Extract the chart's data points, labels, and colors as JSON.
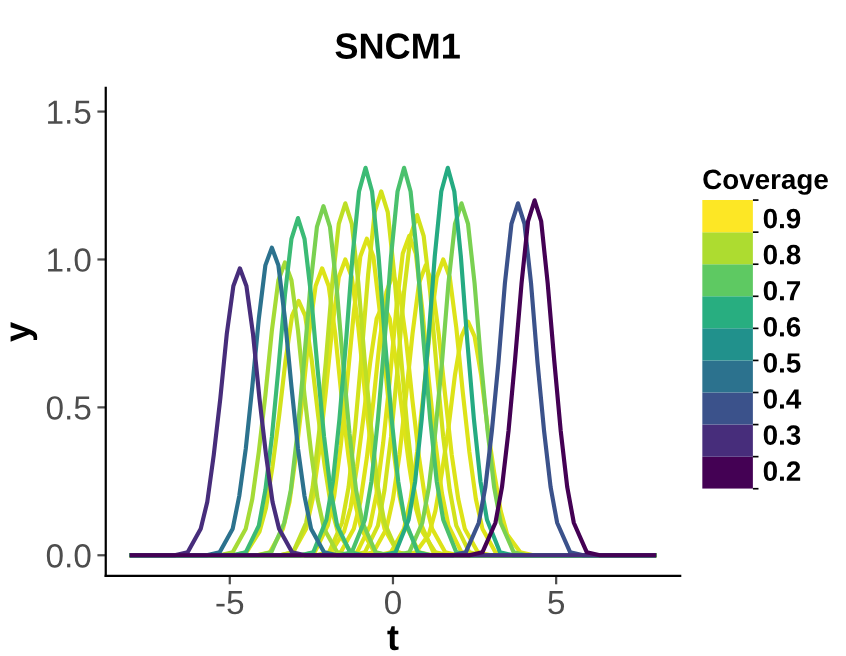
{
  "chart_data": {
    "type": "line",
    "title": "SNCM1",
    "xlabel": "t",
    "ylabel": "y",
    "clabel": "Coverage",
    "xlim": [
      -8.8,
      8.8
    ],
    "ylim": [
      -0.07,
      1.58
    ],
    "xticks": [
      -5,
      0,
      5
    ],
    "yticks": [
      {
        "value": 0,
        "label": "0.0"
      },
      {
        "value": 0.5,
        "label": "0.5"
      },
      {
        "value": 1,
        "label": "1.0"
      },
      {
        "value": 1.5,
        "label": "1.5"
      }
    ],
    "clim": [
      0.15,
      0.95
    ],
    "cticks": [
      0.2,
      0.3,
      0.4,
      0.5,
      0.6,
      0.7,
      0.8,
      0.9
    ],
    "grid": false,
    "legend": false,
    "marker": "none",
    "line_style": "solid",
    "series": [
      {
        "color": "#dde318",
        "x": [
          -8,
          -2.8,
          -2.4,
          -2.0,
          -1.8,
          -1.6,
          -1.4,
          -1.2,
          -1.0,
          -0.8,
          -0.6,
          -0.4,
          -0.2,
          0,
          0.2,
          0.4,
          0.8,
          1.2,
          8
        ],
        "values": [
          0,
          0,
          0.01,
          0.1,
          0.2,
          0.37,
          0.59,
          0.82,
          1.01,
          1.07,
          1.01,
          0.82,
          0.59,
          0.37,
          0.2,
          0.1,
          0.01,
          0,
          0
        ]
      },
      {
        "color": "#dde318",
        "x": [
          -8,
          -2,
          -1.6,
          -1.2,
          -1,
          -0.8,
          -0.6,
          -0.4,
          -0.2,
          0,
          0.2,
          0.4,
          0.6,
          0.8,
          1,
          1.2,
          1.6,
          2,
          8
        ],
        "values": [
          0,
          0,
          0.01,
          0.09,
          0.18,
          0.33,
          0.52,
          0.73,
          0.89,
          0.95,
          0.89,
          0.73,
          0.52,
          0.33,
          0.18,
          0.09,
          0.01,
          0,
          0
        ]
      },
      {
        "color": "#dde318",
        "x": [
          -8,
          -1.5,
          -1.1,
          -0.7,
          -0.5,
          -0.3,
          -0.1,
          0.1,
          0.3,
          0.5,
          0.7,
          0.9,
          1.1,
          1.3,
          1.5,
          1.7,
          2.1,
          2.5,
          8
        ],
        "values": [
          0,
          0,
          0.01,
          0.1,
          0.21,
          0.38,
          0.59,
          0.83,
          1.02,
          1.08,
          1.02,
          0.83,
          0.59,
          0.38,
          0.21,
          0.1,
          0.01,
          0,
          0
        ]
      },
      {
        "color": "#dde318",
        "x": [
          -8,
          -2.3,
          -1.9,
          -1.5,
          -1.3,
          -1.1,
          -0.9,
          -0.7,
          -0.5,
          -0.3,
          -0.1,
          0.1,
          0.3,
          0.5,
          0.7,
          0.9,
          1.3,
          1.7,
          8
        ],
        "values": [
          0,
          0,
          0.01,
          0.08,
          0.16,
          0.3,
          0.47,
          0.65,
          0.8,
          0.85,
          0.8,
          0.65,
          0.47,
          0.3,
          0.16,
          0.08,
          0.01,
          0,
          0
        ]
      },
      {
        "color": "#dde318",
        "x": [
          -8,
          -1,
          -0.6,
          -0.2,
          0,
          0.2,
          0.4,
          0.6,
          0.8,
          1,
          1.2,
          1.4,
          1.6,
          1.8,
          2,
          2.2,
          2.6,
          3,
          8
        ],
        "values": [
          0,
          0,
          0.01,
          0.09,
          0.19,
          0.34,
          0.54,
          0.75,
          0.92,
          0.98,
          0.92,
          0.75,
          0.54,
          0.34,
          0.19,
          0.09,
          0.01,
          0,
          0
        ]
      },
      {
        "color": "#dde318",
        "x": [
          -8,
          -4.17,
          -3.77,
          -3.37,
          -3.17,
          -2.97,
          -2.77,
          -2.57,
          -2.37,
          -2.17,
          -1.97,
          -1.77,
          -1.57,
          -1.37,
          -1.17,
          -0.97,
          -0.57,
          -0.17,
          8
        ],
        "values": [
          0,
          0,
          0.01,
          0.09,
          0.18,
          0.34,
          0.53,
          0.75,
          0.91,
          0.97,
          0.91,
          0.75,
          0.53,
          0.34,
          0.18,
          0.09,
          0.01,
          0,
          0
        ]
      },
      {
        "color": "#dde318",
        "x": [
          -8,
          -3.46,
          -3.06,
          -2.66,
          -2.46,
          -2.26,
          -2.06,
          -1.86,
          -1.66,
          -1.46,
          -1.26,
          -1.06,
          -0.86,
          -0.66,
          -0.46,
          -0.26,
          0.14,
          0.54,
          8
        ],
        "values": [
          0,
          0,
          0.01,
          0.09,
          0.19,
          0.35,
          0.55,
          0.77,
          0.94,
          1.0,
          0.94,
          0.77,
          0.55,
          0.35,
          0.19,
          0.09,
          0.01,
          0,
          0
        ]
      },
      {
        "color": "#dde318",
        "x": [
          -8,
          -0.46,
          -0.06,
          0.34,
          0.54,
          0.74,
          0.94,
          1.14,
          1.34,
          1.54,
          1.74,
          1.94,
          2.14,
          2.34,
          2.54,
          2.74,
          3.14,
          3.54,
          8
        ],
        "values": [
          0,
          0,
          0.01,
          0.09,
          0.19,
          0.35,
          0.55,
          0.77,
          0.94,
          1.0,
          0.94,
          0.77,
          0.55,
          0.35,
          0.19,
          0.09,
          0.01,
          0,
          0
        ]
      },
      {
        "color": "#dde318",
        "x": [
          -8,
          0.3,
          0.7,
          1.1,
          1.3,
          1.5,
          1.7,
          1.9,
          2.1,
          2.3,
          2.5,
          2.7,
          2.9,
          3.1,
          3.3,
          3.5,
          3.9,
          4.3,
          8
        ],
        "values": [
          0,
          0,
          0.01,
          0.07,
          0.15,
          0.28,
          0.43,
          0.61,
          0.74,
          0.79,
          0.74,
          0.61,
          0.43,
          0.28,
          0.15,
          0.07,
          0.01,
          0,
          0
        ]
      },
      {
        "color": "#d2e21b",
        "x": [
          -8,
          -4.89,
          -4.49,
          -4.09,
          -3.89,
          -3.69,
          -3.49,
          -3.29,
          -3.09,
          -2.89,
          -2.69,
          -2.49,
          -2.29,
          -2.09,
          -1.89,
          -1.69,
          -1.29,
          -0.89,
          8
        ],
        "values": [
          0,
          0,
          0.01,
          0.08,
          0.16,
          0.3,
          0.47,
          0.66,
          0.81,
          0.86,
          0.81,
          0.66,
          0.47,
          0.3,
          0.16,
          0.08,
          0.01,
          0,
          0
        ]
      },
      {
        "color": "#d2e21b",
        "x": [
          -8,
          -2.36,
          -1.96,
          -1.56,
          -1.36,
          -1.16,
          -0.96,
          -0.76,
          -0.56,
          -0.36,
          -0.16,
          0.04,
          0.24,
          0.44,
          0.64,
          0.84,
          1.24,
          1.64,
          8
        ],
        "values": [
          0,
          0,
          0.01,
          0.11,
          0.23,
          0.43,
          0.68,
          0.95,
          1.16,
          1.23,
          1.16,
          0.95,
          0.68,
          0.43,
          0.23,
          0.11,
          0.01,
          0,
          0
        ]
      },
      {
        "color": "#d2e21b",
        "x": [
          -8,
          -1.26,
          -0.86,
          -0.46,
          -0.26,
          -0.06,
          0.14,
          0.34,
          0.54,
          0.74,
          0.94,
          1.14,
          1.34,
          1.54,
          1.74,
          1.94,
          2.34,
          2.74,
          8
        ],
        "values": [
          0,
          0,
          0.01,
          0.1,
          0.22,
          0.4,
          0.63,
          0.89,
          1.08,
          1.15,
          1.08,
          0.89,
          0.63,
          0.4,
          0.22,
          0.1,
          0.01,
          0,
          0
        ]
      },
      {
        "color": "#bddf26",
        "x": [
          -8,
          -3.46,
          -3.06,
          -2.66,
          -2.46,
          -2.26,
          -2.06,
          -1.86,
          -1.66,
          -1.46,
          -1.26,
          -1.06,
          -0.86,
          -0.66,
          -0.46,
          -0.26,
          0.14,
          0.54,
          8
        ],
        "values": [
          0,
          0,
          0.01,
          0.11,
          0.23,
          0.42,
          0.65,
          0.92,
          1.12,
          1.19,
          1.12,
          0.92,
          0.65,
          0.42,
          0.23,
          0.11,
          0.01,
          0,
          0
        ]
      },
      {
        "color": "#a5db36",
        "x": [
          -8,
          -5.31,
          -4.91,
          -4.51,
          -4.31,
          -4.11,
          -3.91,
          -3.71,
          -3.51,
          -3.31,
          -3.11,
          -2.91,
          -2.71,
          -2.51,
          -2.31,
          -2.11,
          -1.71,
          -1.31,
          8
        ],
        "values": [
          0,
          0,
          0.01,
          0.09,
          0.19,
          0.35,
          0.54,
          0.76,
          0.93,
          0.99,
          0.93,
          0.76,
          0.54,
          0.35,
          0.19,
          0.09,
          0.01,
          0,
          0
        ]
      },
      {
        "color": "#7ad151",
        "x": [
          -8,
          -4.13,
          -3.73,
          -3.33,
          -3.13,
          -2.93,
          -2.73,
          -2.53,
          -2.33,
          -2.13,
          -1.93,
          -1.73,
          -1.53,
          -1.33,
          -1.13,
          -0.93,
          -0.53,
          -0.13,
          8
        ],
        "values": [
          0,
          0,
          0.01,
          0.11,
          0.22,
          0.41,
          0.65,
          0.91,
          1.11,
          1.18,
          1.11,
          0.91,
          0.65,
          0.41,
          0.22,
          0.11,
          0.01,
          0,
          0
        ]
      },
      {
        "color": "#7ad151",
        "x": [
          -8,
          0.1,
          0.5,
          0.9,
          1.1,
          1.3,
          1.5,
          1.7,
          1.9,
          2.1,
          2.3,
          2.5,
          2.7,
          2.9,
          3.1,
          3.3,
          3.7,
          4.1,
          8
        ],
        "values": [
          0,
          0,
          0.01,
          0.11,
          0.23,
          0.42,
          0.65,
          0.92,
          1.12,
          1.19,
          1.12,
          0.92,
          0.65,
          0.42,
          0.23,
          0.11,
          0.01,
          0,
          0
        ]
      },
      {
        "color": "#3bbb75",
        "x": [
          -8,
          -4.91,
          -4.51,
          -4.11,
          -3.91,
          -3.71,
          -3.51,
          -3.31,
          -3.11,
          -2.91,
          -2.71,
          -2.51,
          -2.31,
          -2.11,
          -1.91,
          -1.71,
          -1.31,
          -0.91,
          8
        ],
        "values": [
          0,
          0,
          0.01,
          0.1,
          0.22,
          0.4,
          0.63,
          0.88,
          1.07,
          1.14,
          1.07,
          0.88,
          0.63,
          0.4,
          0.22,
          0.1,
          0.01,
          0,
          0
        ]
      },
      {
        "color": "#3bbb75",
        "x": [
          -8,
          -2.84,
          -2.44,
          -2.04,
          -1.84,
          -1.64,
          -1.44,
          -1.24,
          -1.04,
          -0.84,
          -0.64,
          -0.44,
          -0.24,
          -0.04,
          0.16,
          0.36,
          0.76,
          1.16,
          8
        ],
        "values": [
          0,
          0,
          0.01,
          0.12,
          0.25,
          0.46,
          0.72,
          1.01,
          1.23,
          1.31,
          1.23,
          1.01,
          0.72,
          0.46,
          0.25,
          0.12,
          0.01,
          0,
          0
        ]
      },
      {
        "color": "#4ac16d",
        "x": [
          -8,
          -1.66,
          -1.26,
          -0.86,
          -0.66,
          -0.46,
          -0.26,
          -0.06,
          0.14,
          0.34,
          0.54,
          0.74,
          0.94,
          1.14,
          1.34,
          1.54,
          1.94,
          2.34,
          8
        ],
        "values": [
          0,
          0,
          0.01,
          0.12,
          0.25,
          0.46,
          0.72,
          1.01,
          1.23,
          1.31,
          1.23,
          1.01,
          0.72,
          0.46,
          0.25,
          0.12,
          0.01,
          0,
          0
        ]
      },
      {
        "color": "#25ab82",
        "x": [
          -8,
          -0.32,
          0.08,
          0.48,
          0.68,
          0.88,
          1.08,
          1.28,
          1.48,
          1.68,
          1.88,
          2.08,
          2.28,
          2.48,
          2.68,
          2.88,
          3.28,
          3.68,
          8
        ],
        "values": [
          0,
          0,
          0.01,
          0.12,
          0.25,
          0.46,
          0.72,
          1.01,
          1.23,
          1.31,
          1.23,
          1.01,
          0.72,
          0.46,
          0.25,
          0.12,
          0.01,
          0,
          0
        ]
      },
      {
        "color": "#2c728e",
        "x": [
          -8,
          -5.71,
          -5.31,
          -4.91,
          -4.71,
          -4.51,
          -4.31,
          -4.11,
          -3.91,
          -3.71,
          -3.51,
          -3.31,
          -3.11,
          -2.91,
          -2.71,
          -2.51,
          -2.11,
          -1.71,
          8
        ],
        "values": [
          0,
          0,
          0.01,
          0.09,
          0.2,
          0.36,
          0.57,
          0.8,
          0.98,
          1.04,
          0.98,
          0.8,
          0.57,
          0.36,
          0.2,
          0.09,
          0.01,
          0,
          0
        ]
      },
      {
        "color": "#3b528b",
        "x": [
          -8,
          1.83,
          2.23,
          2.63,
          2.83,
          3.03,
          3.23,
          3.43,
          3.63,
          3.83,
          4.03,
          4.23,
          4.43,
          4.63,
          4.83,
          5.03,
          5.43,
          5.83,
          8
        ],
        "values": [
          0,
          0,
          0.01,
          0.11,
          0.23,
          0.42,
          0.65,
          0.92,
          1.12,
          1.19,
          1.12,
          0.92,
          0.65,
          0.42,
          0.23,
          0.11,
          0.01,
          0,
          0
        ]
      },
      {
        "color": "#472d7b",
        "x": [
          -8,
          -6.69,
          -6.29,
          -5.89,
          -5.69,
          -5.49,
          -5.29,
          -5.09,
          -4.89,
          -4.69,
          -4.49,
          -4.29,
          -4.09,
          -3.89,
          -3.69,
          -3.49,
          -3.09,
          -2.69,
          8
        ],
        "values": [
          0,
          0,
          0.01,
          0.09,
          0.18,
          0.34,
          0.53,
          0.75,
          0.91,
          0.97,
          0.91,
          0.75,
          0.53,
          0.34,
          0.18,
          0.09,
          0.01,
          0,
          0
        ]
      },
      {
        "color": "#440154",
        "x": [
          -8,
          2.34,
          2.74,
          3.14,
          3.34,
          3.54,
          3.74,
          3.94,
          4.14,
          4.34,
          4.54,
          4.74,
          4.94,
          5.14,
          5.34,
          5.54,
          5.94,
          6.34,
          8
        ],
        "values": [
          0,
          0,
          0.01,
          0.11,
          0.23,
          0.42,
          0.66,
          0.92,
          1.13,
          1.2,
          1.13,
          0.92,
          0.66,
          0.42,
          0.23,
          0.11,
          0.01,
          0,
          0
        ]
      }
    ]
  }
}
